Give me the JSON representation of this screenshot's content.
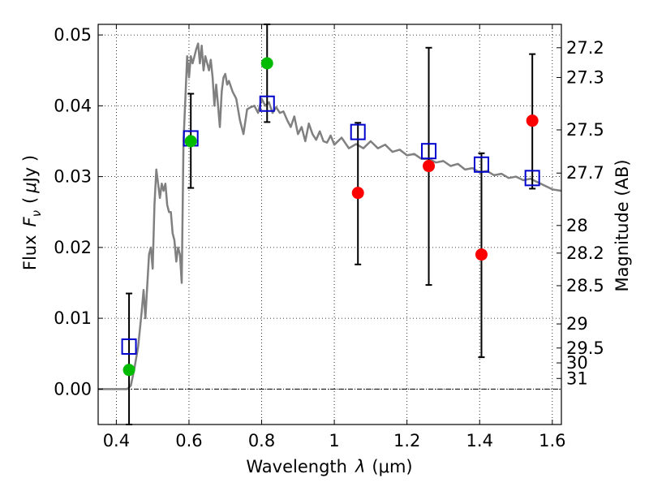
{
  "chart_data": {
    "type": "scatter",
    "xlabel_text": "Wavelength",
    "xlabel_symbol": "λ",
    "xlabel_unit": "(μm)",
    "ylabel_text": "Flux",
    "ylabel_symbol": "F",
    "ylabel_subscript": "ν",
    "ylabel_unit_open": "(",
    "ylabel_unit_mu": "μ",
    "ylabel_unit_rest": "Jy )",
    "y2label": "Magnitude (AB)",
    "xlim": [
      0.35,
      1.625
    ],
    "ylim": [
      -0.005,
      0.0515
    ],
    "grid": true,
    "x_ticks": [
      0.4,
      0.6,
      0.8,
      1.0,
      1.2,
      1.4,
      1.6
    ],
    "x_tick_labels": [
      "0.4",
      "0.6",
      "0.8",
      "1",
      "1.2",
      "1.4",
      "1.6"
    ],
    "y_ticks": [
      0.0,
      0.01,
      0.02,
      0.03,
      0.04,
      0.05
    ],
    "y_tick_labels": [
      "0.00",
      "0.01",
      "0.02",
      "0.03",
      "0.04",
      "0.05"
    ],
    "mag_ticks": [
      {
        "label": "27.2",
        "flux": 0.0482
      },
      {
        "label": "27.3",
        "flux": 0.044
      },
      {
        "label": "27.5",
        "flux": 0.0366
      },
      {
        "label": "27.7",
        "flux": 0.0305
      },
      {
        "label": "28",
        "flux": 0.0231
      },
      {
        "label": "28.2",
        "flux": 0.0192
      },
      {
        "label": "28.5",
        "flux": 0.0146
      },
      {
        "label": "29",
        "flux": 0.0092
      },
      {
        "label": "29.5",
        "flux": 0.0058
      },
      {
        "label": "30",
        "flux": 0.0037
      },
      {
        "label": "31",
        "flux": 0.0015
      }
    ],
    "series": [
      {
        "style": "line",
        "color": "#808080",
        "x": [
          0.35,
          0.43,
          0.44,
          0.45,
          0.46,
          0.47,
          0.475,
          0.48,
          0.49,
          0.495,
          0.5,
          0.505,
          0.51,
          0.515,
          0.52,
          0.525,
          0.53,
          0.535,
          0.54,
          0.545,
          0.55,
          0.555,
          0.56,
          0.565,
          0.57,
          0.575,
          0.58,
          0.585,
          0.59,
          0.595,
          0.6,
          0.605,
          0.61,
          0.615,
          0.62,
          0.625,
          0.63,
          0.635,
          0.64,
          0.645,
          0.65,
          0.655,
          0.66,
          0.665,
          0.67,
          0.675,
          0.68,
          0.685,
          0.69,
          0.695,
          0.7,
          0.705,
          0.71,
          0.72,
          0.73,
          0.74,
          0.75,
          0.76,
          0.77,
          0.78,
          0.79,
          0.8,
          0.81,
          0.82,
          0.83,
          0.84,
          0.85,
          0.86,
          0.87,
          0.88,
          0.89,
          0.9,
          0.91,
          0.92,
          0.93,
          0.94,
          0.95,
          0.96,
          0.97,
          0.98,
          0.99,
          1.0,
          1.02,
          1.04,
          1.06,
          1.08,
          1.1,
          1.12,
          1.14,
          1.16,
          1.18,
          1.2,
          1.22,
          1.24,
          1.26,
          1.28,
          1.3,
          1.32,
          1.34,
          1.36,
          1.38,
          1.4,
          1.42,
          1.44,
          1.46,
          1.48,
          1.5,
          1.52,
          1.54,
          1.56,
          1.58,
          1.6,
          1.625
        ],
        "y": [
          0.0,
          0.0,
          0.0005,
          0.003,
          0.006,
          0.011,
          0.014,
          0.01,
          0.019,
          0.02,
          0.017,
          0.026,
          0.031,
          0.029,
          0.027,
          0.029,
          0.028,
          0.029,
          0.026,
          0.025,
          0.025,
          0.022,
          0.021,
          0.018,
          0.02,
          0.019,
          0.015,
          0.035,
          0.041,
          0.047,
          0.044,
          0.047,
          0.046,
          0.047,
          0.048,
          0.0488,
          0.046,
          0.0485,
          0.045,
          0.047,
          0.046,
          0.045,
          0.0465,
          0.044,
          0.04,
          0.043,
          0.04,
          0.037,
          0.042,
          0.044,
          0.0445,
          0.043,
          0.0435,
          0.042,
          0.041,
          0.038,
          0.036,
          0.0395,
          0.0398,
          0.04,
          0.039,
          0.041,
          0.04,
          0.0405,
          0.039,
          0.0398,
          0.039,
          0.0392,
          0.038,
          0.037,
          0.0385,
          0.036,
          0.037,
          0.035,
          0.0375,
          0.036,
          0.0352,
          0.0364,
          0.035,
          0.0348,
          0.0358,
          0.0345,
          0.0355,
          0.034,
          0.0346,
          0.034,
          0.035,
          0.034,
          0.0345,
          0.0335,
          0.0338,
          0.033,
          0.0332,
          0.0325,
          0.0325,
          0.032,
          0.0322,
          0.0315,
          0.0318,
          0.031,
          0.0312,
          0.0306,
          0.0308,
          0.0302,
          0.0304,
          0.0298,
          0.03,
          0.0295,
          0.0297,
          0.0292,
          0.0287,
          0.0282,
          0.028
        ]
      },
      {
        "style": "errorbar",
        "color": "#000000",
        "x": [
          0.435,
          0.605,
          0.815,
          1.065,
          1.26,
          1.405,
          1.545
        ],
        "y_low": [
          -0.005,
          0.0284,
          0.0377,
          0.0176,
          0.0147,
          0.0045,
          0.0283
        ],
        "y_high": [
          0.0135,
          0.0417,
          0.0515,
          0.0376,
          0.0482,
          0.0333,
          0.0473
        ]
      },
      {
        "style": "square",
        "color": "#0000cc",
        "x": [
          0.435,
          0.605,
          0.815,
          1.065,
          1.26,
          1.405,
          1.545
        ],
        "y": [
          0.006,
          0.0354,
          0.0403,
          0.0363,
          0.0336,
          0.0317,
          0.0298
        ]
      },
      {
        "style": "circle",
        "color": "#00bb00",
        "x": [
          0.435,
          0.605,
          0.815
        ],
        "y": [
          0.0027,
          0.035,
          0.046
        ]
      },
      {
        "style": "circle",
        "color": "#ff0000",
        "x": [
          1.065,
          1.26,
          1.405,
          1.545
        ],
        "y": [
          0.0277,
          0.0315,
          0.019,
          0.0379
        ]
      }
    ]
  }
}
